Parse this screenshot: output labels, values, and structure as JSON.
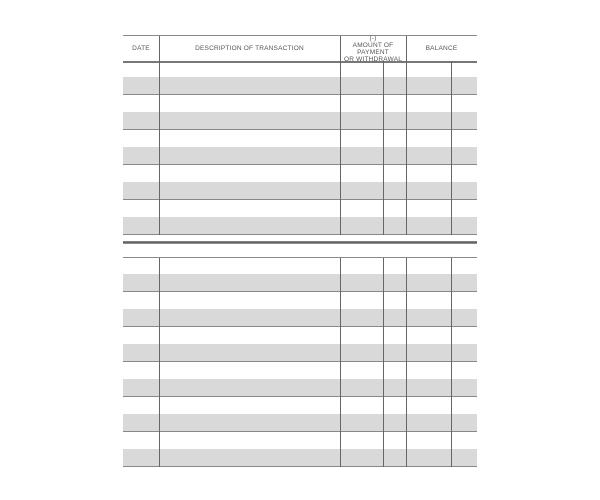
{
  "register": {
    "headers": {
      "date": "DATE",
      "description": "DESCRIPTION OF TRANSACTION",
      "amount_sign": "(-)",
      "amount_line1": "AMOUNT OF PAYMENT",
      "amount_line2": "OR WITHDRAWAL",
      "balance": "BALANCE"
    }
  }
}
